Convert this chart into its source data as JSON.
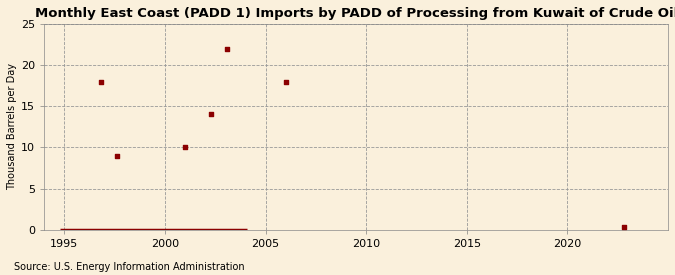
{
  "title": "Monthly East Coast (PADD 1) Imports by PADD of Processing from Kuwait of Crude Oil",
  "ylabel": "Thousand Barrels per Day",
  "source": "Source: U.S. Energy Information Administration",
  "background_color": "#FAF0DC",
  "plot_bg_color": "#FAF0DC",
  "marker_color": "#8B0000",
  "line_color": "#8B0000",
  "xlim": [
    1994,
    2025
  ],
  "ylim": [
    0,
    25
  ],
  "yticks": [
    0,
    5,
    10,
    15,
    20,
    25
  ],
  "xticks": [
    1995,
    2000,
    2005,
    2010,
    2015,
    2020
  ],
  "scatter_x": [
    1996.8,
    1997.6,
    2001.0,
    2002.3,
    2003.1,
    2006.0
  ],
  "scatter_y": [
    18.0,
    9.0,
    10.0,
    14.0,
    22.0,
    18.0
  ],
  "line_x_start": 1994.8,
  "line_x_end": 2004.1,
  "near_zero_x": 2022.8,
  "near_zero_y": 0.3,
  "title_fontsize": 9.5,
  "axis_fontsize": 8,
  "source_fontsize": 7
}
